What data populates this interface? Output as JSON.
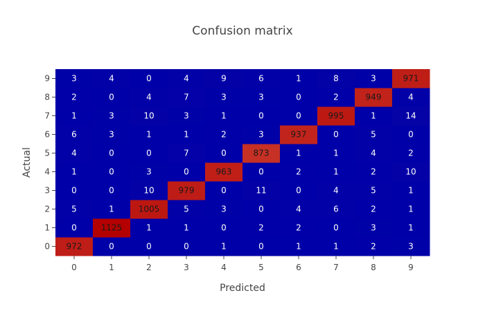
{
  "chart_data": {
    "type": "heatmap",
    "title": "Confusion matrix",
    "xlabel": "Predicted",
    "ylabel": "Actual",
    "x_categories": [
      "0",
      "1",
      "2",
      "3",
      "4",
      "5",
      "6",
      "7",
      "8",
      "9"
    ],
    "y_categories": [
      "0",
      "1",
      "2",
      "3",
      "4",
      "5",
      "6",
      "7",
      "8",
      "9"
    ],
    "values": [
      [
        972,
        0,
        0,
        0,
        1,
        0,
        1,
        1,
        2,
        3
      ],
      [
        0,
        1125,
        1,
        1,
        0,
        2,
        2,
        0,
        3,
        1
      ],
      [
        5,
        1,
        1005,
        5,
        3,
        0,
        4,
        6,
        2,
        1
      ],
      [
        0,
        0,
        10,
        979,
        0,
        11,
        0,
        4,
        5,
        1
      ],
      [
        1,
        0,
        3,
        0,
        963,
        0,
        2,
        1,
        2,
        10
      ],
      [
        4,
        0,
        0,
        7,
        0,
        873,
        1,
        1,
        4,
        2
      ],
      [
        6,
        3,
        1,
        1,
        2,
        3,
        937,
        0,
        5,
        0
      ],
      [
        1,
        3,
        10,
        3,
        1,
        0,
        0,
        995,
        1,
        14
      ],
      [
        2,
        0,
        4,
        7,
        3,
        3,
        0,
        2,
        949,
        4
      ],
      [
        3,
        4,
        0,
        4,
        9,
        6,
        1,
        8,
        3,
        971
      ]
    ],
    "zlim": [
      0,
      1125
    ],
    "colorscale": [
      "#0000a8",
      "#dc6c53",
      "#b40000"
    ],
    "label_color_light": "#ffffff",
    "label_color_dark": "#1a1a1a"
  }
}
